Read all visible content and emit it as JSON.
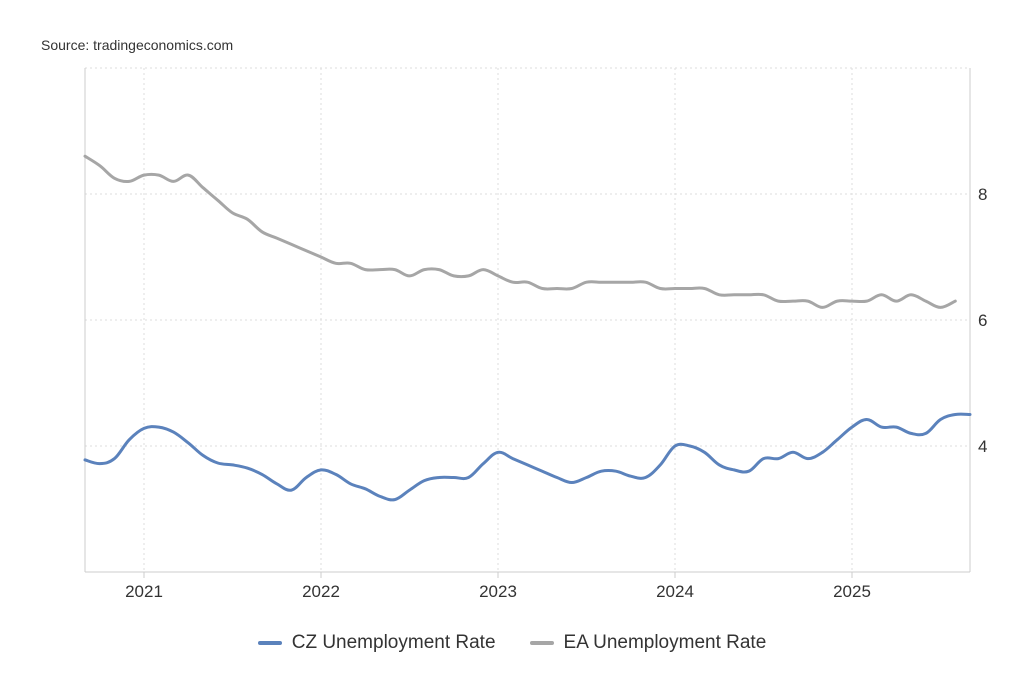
{
  "source": "Source: tradingeconomics.com",
  "colors": {
    "cz": "#5b82bc",
    "ea": "#a6a6a6",
    "grid": "#dddddd",
    "axis": "#cccccc"
  },
  "chart_data": {
    "type": "line",
    "title": "",
    "xlabel": "",
    "ylabel": "",
    "x_tick_labels": [
      "2021",
      "2022",
      "2023",
      "2024",
      "2025"
    ],
    "y_tick_labels": [
      "4",
      "6",
      "8"
    ],
    "y_ticks": [
      4,
      6,
      8
    ],
    "ylim": [
      2,
      10
    ],
    "xlim": [
      "2020-09",
      "2025-09"
    ],
    "y_axis_side": "right",
    "grid": true,
    "legend_position": "bottom-center",
    "series": [
      {
        "name": "CZ Unemployment Rate",
        "color": "#5b82bc",
        "points": [
          [
            "2020-09",
            3.78
          ],
          [
            "2020-10",
            3.72
          ],
          [
            "2020-11",
            3.8
          ],
          [
            "2020-12",
            4.1
          ],
          [
            "2021-01",
            4.28
          ],
          [
            "2021-02",
            4.3
          ],
          [
            "2021-03",
            4.22
          ],
          [
            "2021-04",
            4.05
          ],
          [
            "2021-05",
            3.85
          ],
          [
            "2021-06",
            3.73
          ],
          [
            "2021-07",
            3.7
          ],
          [
            "2021-08",
            3.65
          ],
          [
            "2021-09",
            3.55
          ],
          [
            "2021-10",
            3.4
          ],
          [
            "2021-11",
            3.3
          ],
          [
            "2021-12",
            3.5
          ],
          [
            "2022-01",
            3.62
          ],
          [
            "2022-02",
            3.55
          ],
          [
            "2022-03",
            3.4
          ],
          [
            "2022-04",
            3.32
          ],
          [
            "2022-05",
            3.2
          ],
          [
            "2022-06",
            3.15
          ],
          [
            "2022-07",
            3.3
          ],
          [
            "2022-08",
            3.45
          ],
          [
            "2022-09",
            3.5
          ],
          [
            "2022-10",
            3.5
          ],
          [
            "2022-11",
            3.5
          ],
          [
            "2022-12",
            3.72
          ],
          [
            "2023-01",
            3.9
          ],
          [
            "2023-02",
            3.8
          ],
          [
            "2023-03",
            3.7
          ],
          [
            "2023-04",
            3.6
          ],
          [
            "2023-05",
            3.5
          ],
          [
            "2023-06",
            3.42
          ],
          [
            "2023-07",
            3.5
          ],
          [
            "2023-08",
            3.6
          ],
          [
            "2023-09",
            3.6
          ],
          [
            "2023-10",
            3.52
          ],
          [
            "2023-11",
            3.5
          ],
          [
            "2023-12",
            3.7
          ],
          [
            "2024-01",
            4.0
          ],
          [
            "2024-02",
            4.0
          ],
          [
            "2024-03",
            3.9
          ],
          [
            "2024-04",
            3.7
          ],
          [
            "2024-05",
            3.62
          ],
          [
            "2024-06",
            3.6
          ],
          [
            "2024-07",
            3.8
          ],
          [
            "2024-08",
            3.8
          ],
          [
            "2024-09",
            3.9
          ],
          [
            "2024-10",
            3.8
          ],
          [
            "2024-11",
            3.9
          ],
          [
            "2024-12",
            4.1
          ],
          [
            "2025-01",
            4.3
          ],
          [
            "2025-02",
            4.42
          ],
          [
            "2025-03",
            4.3
          ],
          [
            "2025-04",
            4.3
          ],
          [
            "2025-05",
            4.2
          ],
          [
            "2025-06",
            4.2
          ],
          [
            "2025-07",
            4.42
          ],
          [
            "2025-08",
            4.5
          ],
          [
            "2025-09",
            4.5
          ]
        ]
      },
      {
        "name": "EA Unemployment Rate",
        "color": "#a6a6a6",
        "points": [
          [
            "2020-09",
            8.6
          ],
          [
            "2020-10",
            8.45
          ],
          [
            "2020-11",
            8.25
          ],
          [
            "2020-12",
            8.2
          ],
          [
            "2021-01",
            8.3
          ],
          [
            "2021-02",
            8.3
          ],
          [
            "2021-03",
            8.2
          ],
          [
            "2021-04",
            8.3
          ],
          [
            "2021-05",
            8.1
          ],
          [
            "2021-06",
            7.9
          ],
          [
            "2021-07",
            7.7
          ],
          [
            "2021-08",
            7.6
          ],
          [
            "2021-09",
            7.4
          ],
          [
            "2021-10",
            7.3
          ],
          [
            "2021-11",
            7.2
          ],
          [
            "2021-12",
            7.1
          ],
          [
            "2022-01",
            7.0
          ],
          [
            "2022-02",
            6.9
          ],
          [
            "2022-03",
            6.9
          ],
          [
            "2022-04",
            6.8
          ],
          [
            "2022-05",
            6.8
          ],
          [
            "2022-06",
            6.8
          ],
          [
            "2022-07",
            6.7
          ],
          [
            "2022-08",
            6.8
          ],
          [
            "2022-09",
            6.8
          ],
          [
            "2022-10",
            6.7
          ],
          [
            "2022-11",
            6.7
          ],
          [
            "2022-12",
            6.8
          ],
          [
            "2023-01",
            6.7
          ],
          [
            "2023-02",
            6.6
          ],
          [
            "2023-03",
            6.6
          ],
          [
            "2023-04",
            6.5
          ],
          [
            "2023-05",
            6.5
          ],
          [
            "2023-06",
            6.5
          ],
          [
            "2023-07",
            6.6
          ],
          [
            "2023-08",
            6.6
          ],
          [
            "2023-09",
            6.6
          ],
          [
            "2023-10",
            6.6
          ],
          [
            "2023-11",
            6.6
          ],
          [
            "2023-12",
            6.5
          ],
          [
            "2024-01",
            6.5
          ],
          [
            "2024-02",
            6.5
          ],
          [
            "2024-03",
            6.5
          ],
          [
            "2024-04",
            6.4
          ],
          [
            "2024-05",
            6.4
          ],
          [
            "2024-06",
            6.4
          ],
          [
            "2024-07",
            6.4
          ],
          [
            "2024-08",
            6.3
          ],
          [
            "2024-09",
            6.3
          ],
          [
            "2024-10",
            6.3
          ],
          [
            "2024-11",
            6.2
          ],
          [
            "2024-12",
            6.3
          ],
          [
            "2025-01",
            6.3
          ],
          [
            "2025-02",
            6.3
          ],
          [
            "2025-03",
            6.4
          ],
          [
            "2025-04",
            6.3
          ],
          [
            "2025-05",
            6.4
          ],
          [
            "2025-06",
            6.3
          ],
          [
            "2025-07",
            6.2
          ],
          [
            "2025-08",
            6.3
          ]
        ]
      }
    ]
  }
}
